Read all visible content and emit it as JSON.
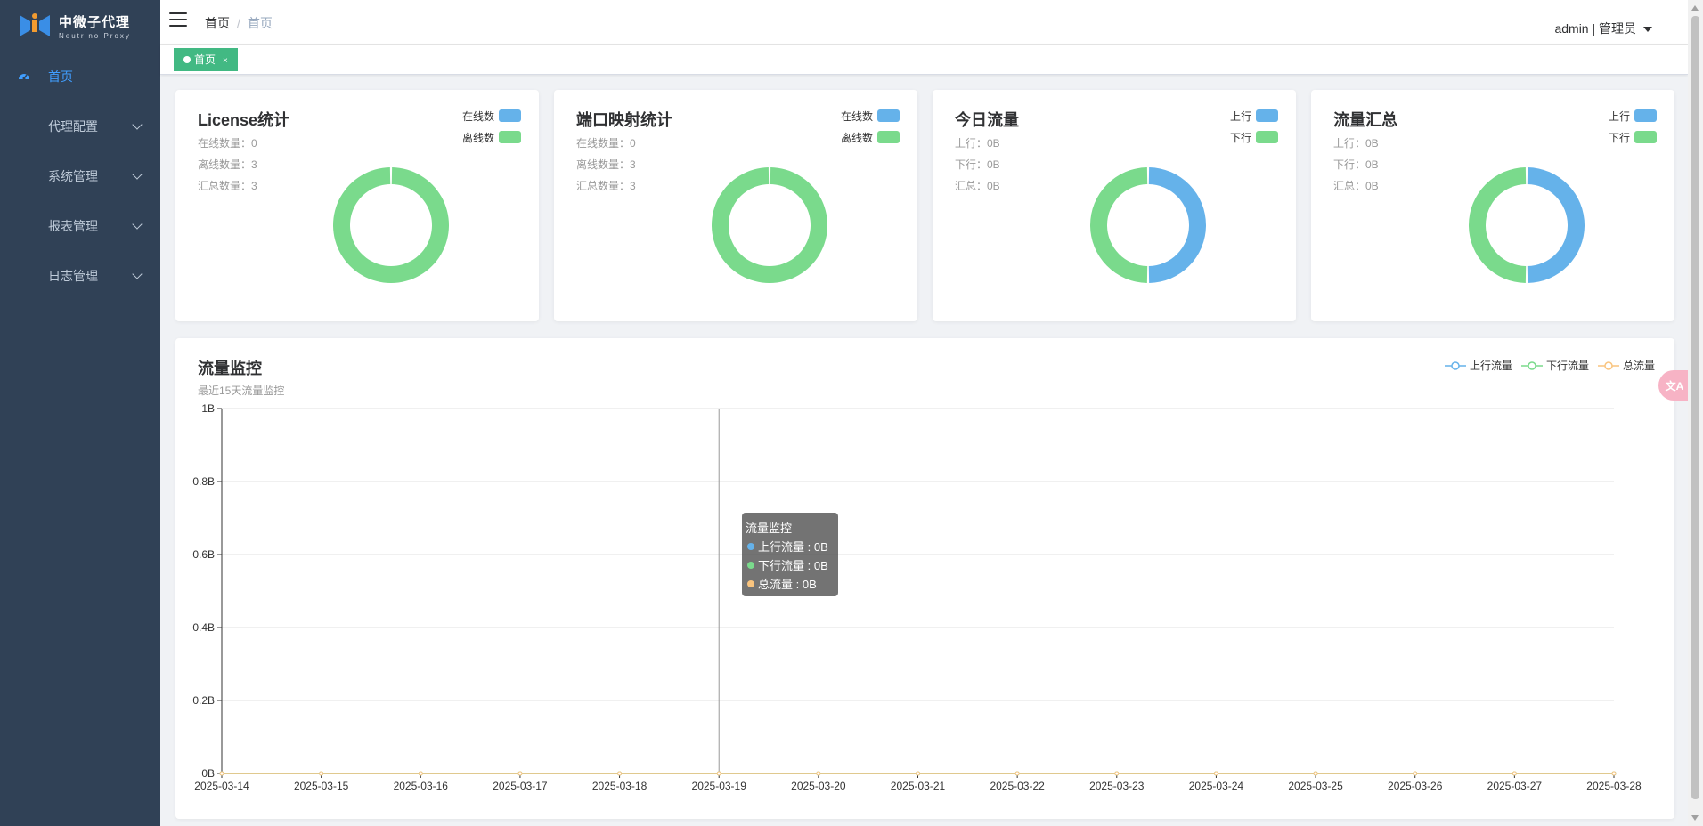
{
  "app": {
    "logo_title": "中微子代理",
    "logo_subtitle": "Neutrino Proxy"
  },
  "sidebar": {
    "items": [
      {
        "label": "首页",
        "icon": "dashboard-icon",
        "active": true
      },
      {
        "label": "代理配置",
        "icon": "grid-icon"
      },
      {
        "label": "系统管理",
        "icon": "grid-icon"
      },
      {
        "label": "报表管理",
        "icon": "grid-icon"
      },
      {
        "label": "日志管理",
        "icon": "grid-icon"
      }
    ]
  },
  "header": {
    "breadcrumb_home": "首页",
    "breadcrumb_sep": "/",
    "breadcrumb_current": "首页",
    "user": "admin | 管理员"
  },
  "tags": {
    "active_label": "首页",
    "close_label": "×"
  },
  "cards": [
    {
      "title": "License统计",
      "stats": [
        "在线数量：0",
        "离线数量：3",
        "汇总数量：3"
      ],
      "legend": [
        "在线数",
        "离线数"
      ],
      "values": [
        0,
        3
      ]
    },
    {
      "title": "端口映射统计",
      "stats": [
        "在线数量：0",
        "离线数量：3",
        "汇总数量：3"
      ],
      "legend": [
        "在线数",
        "离线数"
      ],
      "values": [
        0,
        3
      ]
    },
    {
      "title": "今日流量",
      "stats": [
        "上行：0B",
        "下行：0B",
        "汇总：0B"
      ],
      "legend": [
        "上行",
        "下行"
      ],
      "values": [
        1,
        1
      ]
    },
    {
      "title": "流量汇总",
      "stats": [
        "上行：0B",
        "下行：0B",
        "汇总：0B"
      ],
      "legend": [
        "上行",
        "下行"
      ],
      "values": [
        1,
        1
      ]
    }
  ],
  "colors": {
    "blue": "#65b2ea",
    "green": "#7ada8c",
    "orange": "#f9c47e",
    "accent": "#409eff",
    "tag_green": "#42b983"
  },
  "monitor": {
    "title": "流量监控",
    "subtitle": "最近15天流量监控",
    "legend": [
      "上行流量",
      "下行流量",
      "总流量"
    ],
    "tooltip": {
      "title": "流量监控",
      "rows": [
        "上行流量 : 0B",
        "下行流量 : 0B",
        "总流量 : 0B"
      ]
    }
  },
  "chart_data": {
    "type": "line",
    "title": "流量监控",
    "subtitle": "最近15天流量监控",
    "x": [
      "2025-03-14",
      "2025-03-15",
      "2025-03-16",
      "2025-03-17",
      "2025-03-18",
      "2025-03-19",
      "2025-03-20",
      "2025-03-21",
      "2025-03-22",
      "2025-03-23",
      "2025-03-24",
      "2025-03-25",
      "2025-03-26",
      "2025-03-27",
      "2025-03-28"
    ],
    "yticks": [
      "0B",
      "0.2B",
      "0.4B",
      "0.6B",
      "0.8B",
      "1B"
    ],
    "ylim": [
      0,
      1
    ],
    "series": [
      {
        "name": "上行流量",
        "values": [
          0,
          0,
          0,
          0,
          0,
          0,
          0,
          0,
          0,
          0,
          0,
          0,
          0,
          0,
          0
        ]
      },
      {
        "name": "下行流量",
        "values": [
          0,
          0,
          0,
          0,
          0,
          0,
          0,
          0,
          0,
          0,
          0,
          0,
          0,
          0,
          0
        ]
      },
      {
        "name": "总流量",
        "values": [
          0,
          0,
          0,
          0,
          0,
          0,
          0,
          0,
          0,
          0,
          0,
          0,
          0,
          0,
          0
        ]
      }
    ],
    "hover_index": 5,
    "grid": true,
    "legend_position": "top-right"
  },
  "float_button": "文A"
}
